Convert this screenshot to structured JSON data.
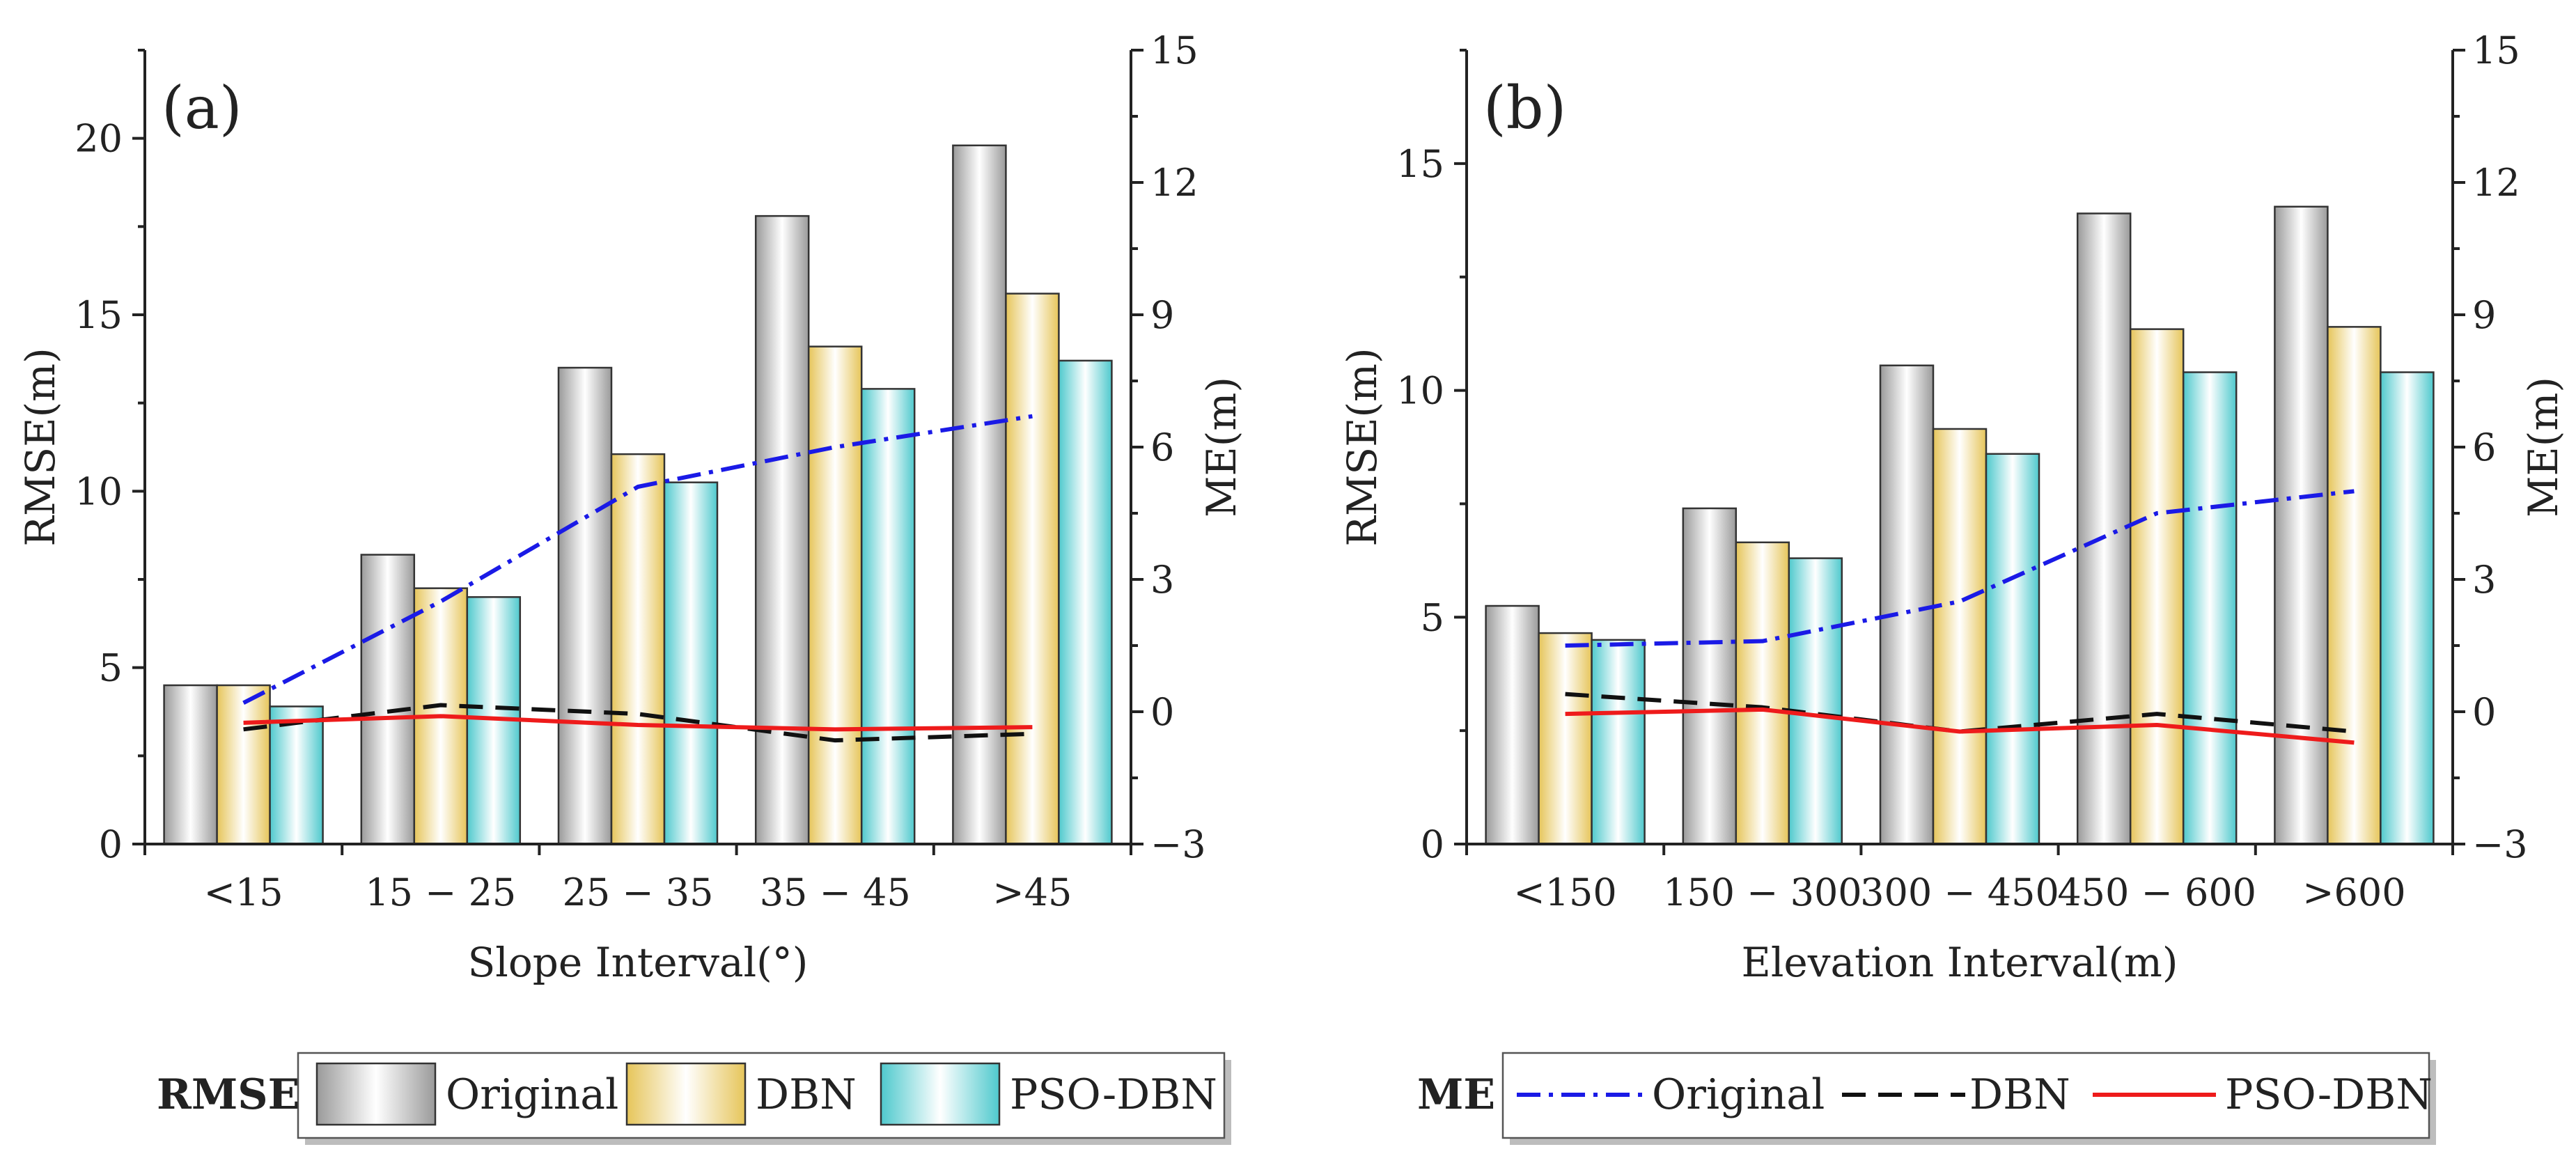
{
  "chart_data": [
    {
      "type": "bar",
      "panel_label": "(a)",
      "xlabel": "Slope Interval(°)",
      "ylabel": "RMSE(m)",
      "y2label": "ME(m)",
      "ylim": [
        0,
        22.5
      ],
      "y2lim": [
        -3,
        15
      ],
      "yticks": [
        "0",
        "5",
        "10",
        "15",
        "20"
      ],
      "y2ticks": [
        "−3",
        "0",
        "3",
        "6",
        "9",
        "12",
        "15"
      ],
      "categories": [
        "<15",
        "15 − 25",
        "25 − 35",
        "35 − 45",
        ">45"
      ],
      "rmse_series": [
        {
          "name": "Original",
          "values": [
            4.5,
            8.2,
            13.5,
            17.8,
            19.8
          ]
        },
        {
          "name": "DBN",
          "values": [
            4.5,
            7.25,
            11.05,
            14.1,
            15.6
          ]
        },
        {
          "name": "PSO-DBN",
          "values": [
            3.9,
            7.0,
            10.25,
            12.9,
            13.7
          ]
        }
      ],
      "me_series": [
        {
          "name": "Original",
          "values": [
            0.2,
            2.5,
            5.1,
            6.0,
            6.7
          ]
        },
        {
          "name": "DBN",
          "values": [
            -0.4,
            0.15,
            -0.05,
            -0.65,
            -0.5
          ]
        },
        {
          "name": "PSO-DBN",
          "values": [
            -0.25,
            -0.1,
            -0.3,
            -0.4,
            -0.35
          ]
        }
      ]
    },
    {
      "type": "bar",
      "panel_label": "(b)",
      "xlabel": "Elevation Interval(m)",
      "ylabel": "RMSE(m)",
      "y2label": "ME(m)",
      "ylim": [
        0,
        17.5
      ],
      "y2lim": [
        -3,
        15
      ],
      "yticks": [
        "0",
        "5",
        "10",
        "15"
      ],
      "y2ticks": [
        "−3",
        "0",
        "3",
        "6",
        "9",
        "12",
        "15"
      ],
      "categories": [
        "<150",
        "150 − 300",
        "300 − 450",
        "450 − 600",
        ">600"
      ],
      "rmse_series": [
        {
          "name": "Original",
          "values": [
            5.25,
            7.4,
            10.55,
            13.9,
            14.05
          ]
        },
        {
          "name": "DBN",
          "values": [
            4.65,
            6.65,
            9.15,
            11.35,
            11.4
          ]
        },
        {
          "name": "PSO-DBN",
          "values": [
            4.5,
            6.3,
            8.6,
            10.4,
            10.4
          ]
        }
      ],
      "me_series": [
        {
          "name": "Original",
          "values": [
            1.5,
            1.6,
            2.5,
            4.5,
            5.0
          ]
        },
        {
          "name": "DBN",
          "values": [
            0.4,
            0.1,
            -0.45,
            -0.05,
            -0.45
          ]
        },
        {
          "name": "PSO-DBN",
          "values": [
            -0.05,
            0.05,
            -0.45,
            -0.3,
            -0.7
          ]
        }
      ]
    }
  ],
  "legends": {
    "rmse": {
      "title": "RMSE",
      "items": [
        "Original",
        "DBN",
        "PSO-DBN"
      ]
    },
    "me": {
      "title": "ME",
      "items": [
        "Original",
        "DBN",
        "PSO-DBN"
      ]
    }
  },
  "colors": {
    "bar_original": "#b8b8b8",
    "bar_dbn": "#efd77c",
    "bar_pso": "#6ed3d6",
    "line_original": "#1a1ae6",
    "line_dbn": "#111111",
    "line_pso": "#ee1b1b"
  }
}
